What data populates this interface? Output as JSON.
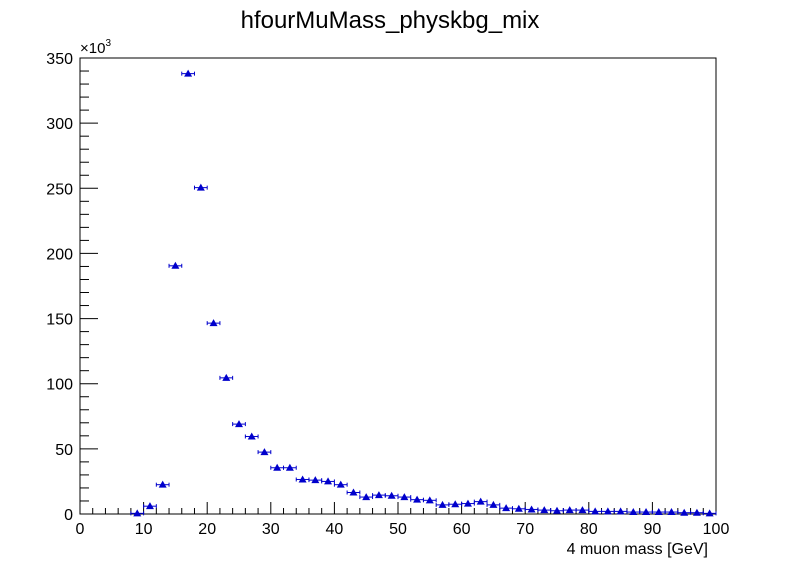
{
  "chart_data": {
    "type": "scatter",
    "title": "hfourMuMass_physkbg_mix",
    "xlabel": "4 muon mass [GeV]",
    "ylabel": "",
    "y_multiplier": "×10",
    "y_multiplier_exp": "3",
    "xlim": [
      0,
      100
    ],
    "ylim": [
      0,
      350000
    ],
    "x_ticks": [
      0,
      10,
      20,
      30,
      40,
      50,
      60,
      70,
      80,
      90,
      100
    ],
    "y_ticks": [
      0,
      50,
      100,
      150,
      200,
      250,
      300,
      350
    ],
    "bin_half_width": 1,
    "marker_color": "#0000cc",
    "series": [
      {
        "x": [
          9,
          11,
          13,
          15,
          17,
          19,
          21,
          23,
          25,
          27,
          29,
          31,
          33,
          35,
          37,
          39,
          41,
          43,
          45,
          47,
          49,
          51,
          53,
          55,
          57,
          59,
          61,
          63,
          65,
          67,
          69,
          71,
          73,
          75,
          77,
          79,
          81,
          83,
          85,
          87,
          89,
          91,
          93,
          95,
          97,
          99
        ],
        "y": [
          500,
          6000,
          22500,
          190500,
          338000,
          250500,
          146500,
          104500,
          69000,
          59500,
          47500,
          35500,
          35500,
          26500,
          26000,
          25000,
          22500,
          16500,
          13000,
          14500,
          14000,
          13000,
          11000,
          10500,
          7000,
          7500,
          8000,
          9500,
          7000,
          4500,
          4000,
          3500,
          3000,
          2500,
          3000,
          3000,
          2000,
          2000,
          2000,
          1500,
          1500,
          1500,
          1500,
          1000,
          1000,
          500
        ]
      }
    ]
  }
}
